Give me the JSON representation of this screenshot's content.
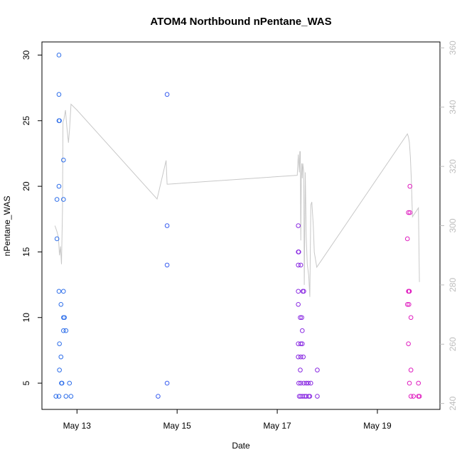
{
  "chart_data": {
    "type": "scatter",
    "title": "ATOM4 Northbound nPentane_WAS",
    "xlabel": "Date",
    "ylabel": "nPentane_WAS",
    "x_units": "days (May 13 = 13.0)",
    "xlim": [
      12.3,
      20.25
    ],
    "ylim": [
      3.0,
      31.0
    ],
    "x_ticks": [
      {
        "value": 13,
        "label": "May 13"
      },
      {
        "value": 15,
        "label": "May 15"
      },
      {
        "value": 17,
        "label": "May 17"
      },
      {
        "value": 19,
        "label": "May 19"
      }
    ],
    "y_ticks": [
      5,
      10,
      15,
      20,
      25,
      30
    ],
    "y2lim": [
      238.0,
      362.0
    ],
    "y2_ticks": [
      240,
      260,
      280,
      300,
      320,
      340,
      360
    ],
    "points": [
      {
        "x": 12.58,
        "y": 4,
        "color": "#2f6fea"
      },
      {
        "x": 12.6,
        "y": 16,
        "color": "#2f6fea"
      },
      {
        "x": 12.6,
        "y": 19,
        "color": "#2f6fea"
      },
      {
        "x": 12.64,
        "y": 30,
        "color": "#2f6fea"
      },
      {
        "x": 12.64,
        "y": 27,
        "color": "#2f6fea"
      },
      {
        "x": 12.64,
        "y": 25,
        "color": "#2f6fea"
      },
      {
        "x": 12.65,
        "y": 25,
        "color": "#2f6fea"
      },
      {
        "x": 12.64,
        "y": 20,
        "color": "#2f6fea"
      },
      {
        "x": 12.64,
        "y": 12,
        "color": "#2f6fea"
      },
      {
        "x": 12.65,
        "y": 8,
        "color": "#2f6fea"
      },
      {
        "x": 12.65,
        "y": 6,
        "color": "#2f6fea"
      },
      {
        "x": 12.64,
        "y": 4,
        "color": "#2f6fea"
      },
      {
        "x": 12.68,
        "y": 11,
        "color": "#2f6fea"
      },
      {
        "x": 12.68,
        "y": 7,
        "color": "#2f6fea"
      },
      {
        "x": 12.69,
        "y": 5,
        "color": "#2f6fea"
      },
      {
        "x": 12.7,
        "y": 5,
        "color": "#2f6fea"
      },
      {
        "x": 12.73,
        "y": 22,
        "color": "#2f6fea"
      },
      {
        "x": 12.73,
        "y": 19,
        "color": "#2f6fea"
      },
      {
        "x": 12.73,
        "y": 12,
        "color": "#2f6fea"
      },
      {
        "x": 12.73,
        "y": 10,
        "color": "#2f6fea"
      },
      {
        "x": 12.75,
        "y": 10,
        "color": "#2f6fea"
      },
      {
        "x": 12.73,
        "y": 9,
        "color": "#2f6fea"
      },
      {
        "x": 12.78,
        "y": 9,
        "color": "#2f6fea"
      },
      {
        "x": 12.78,
        "y": 4,
        "color": "#2f6fea"
      },
      {
        "x": 12.85,
        "y": 5,
        "color": "#2f6fea"
      },
      {
        "x": 12.88,
        "y": 4,
        "color": "#2f6fea"
      },
      {
        "x": 14.62,
        "y": 4,
        "color": "#3b5ff0"
      },
      {
        "x": 14.8,
        "y": 27,
        "color": "#3b5ff0"
      },
      {
        "x": 14.8,
        "y": 17,
        "color": "#3b5ff0"
      },
      {
        "x": 14.8,
        "y": 14,
        "color": "#3b5ff0"
      },
      {
        "x": 14.8,
        "y": 5,
        "color": "#3b5ff0"
      },
      {
        "x": 17.42,
        "y": 17,
        "color": "#8a2be2"
      },
      {
        "x": 17.42,
        "y": 15,
        "color": "#8a2be2"
      },
      {
        "x": 17.43,
        "y": 15,
        "color": "#8a2be2"
      },
      {
        "x": 17.42,
        "y": 14,
        "color": "#8a2be2"
      },
      {
        "x": 17.47,
        "y": 14,
        "color": "#8a2be2"
      },
      {
        "x": 17.42,
        "y": 12,
        "color": "#8a2be2"
      },
      {
        "x": 17.42,
        "y": 11,
        "color": "#8a2be2"
      },
      {
        "x": 17.42,
        "y": 8,
        "color": "#8a2be2"
      },
      {
        "x": 17.42,
        "y": 7,
        "color": "#8a2be2"
      },
      {
        "x": 17.43,
        "y": 5,
        "color": "#8a2be2"
      },
      {
        "x": 17.44,
        "y": 4,
        "color": "#8a2be2"
      },
      {
        "x": 17.46,
        "y": 10,
        "color": "#8a2be2"
      },
      {
        "x": 17.46,
        "y": 6,
        "color": "#8a2be2"
      },
      {
        "x": 17.47,
        "y": 8,
        "color": "#8a2be2"
      },
      {
        "x": 17.47,
        "y": 7,
        "color": "#8a2be2"
      },
      {
        "x": 17.47,
        "y": 5,
        "color": "#8a2be2"
      },
      {
        "x": 17.47,
        "y": 4,
        "color": "#8a2be2"
      },
      {
        "x": 17.49,
        "y": 10,
        "color": "#8a2be2"
      },
      {
        "x": 17.5,
        "y": 9,
        "color": "#8a2be2"
      },
      {
        "x": 17.5,
        "y": 8,
        "color": "#8a2be2"
      },
      {
        "x": 17.51,
        "y": 12,
        "color": "#8a2be2"
      },
      {
        "x": 17.51,
        "y": 4,
        "color": "#8a2be2"
      },
      {
        "x": 17.53,
        "y": 12,
        "color": "#8a2be2"
      },
      {
        "x": 17.52,
        "y": 7,
        "color": "#8a2be2"
      },
      {
        "x": 17.53,
        "y": 5,
        "color": "#8a2be2"
      },
      {
        "x": 17.55,
        "y": 4,
        "color": "#8a2be2"
      },
      {
        "x": 17.58,
        "y": 5,
        "color": "#8a2be2"
      },
      {
        "x": 17.58,
        "y": 4,
        "color": "#8a2be2"
      },
      {
        "x": 17.62,
        "y": 5,
        "color": "#8a2be2"
      },
      {
        "x": 17.63,
        "y": 4,
        "color": "#8a2be2"
      },
      {
        "x": 17.65,
        "y": 4,
        "color": "#8a2be2"
      },
      {
        "x": 17.67,
        "y": 5,
        "color": "#8a2be2"
      },
      {
        "x": 17.8,
        "y": 6,
        "color": "#8a2be2"
      },
      {
        "x": 17.8,
        "y": 4,
        "color": "#8a2be2"
      },
      {
        "x": 19.6,
        "y": 16,
        "color": "#e020c0"
      },
      {
        "x": 19.6,
        "y": 11,
        "color": "#e020c0"
      },
      {
        "x": 19.62,
        "y": 18,
        "color": "#e020c0"
      },
      {
        "x": 19.65,
        "y": 18,
        "color": "#e020c0"
      },
      {
        "x": 19.62,
        "y": 12,
        "color": "#e020c0"
      },
      {
        "x": 19.63,
        "y": 12,
        "color": "#e020c0"
      },
      {
        "x": 19.64,
        "y": 12,
        "color": "#e020c0"
      },
      {
        "x": 19.63,
        "y": 11,
        "color": "#e020c0"
      },
      {
        "x": 19.62,
        "y": 8,
        "color": "#e020c0"
      },
      {
        "x": 19.64,
        "y": 5,
        "color": "#e020c0"
      },
      {
        "x": 19.65,
        "y": 20,
        "color": "#e020c0"
      },
      {
        "x": 19.67,
        "y": 10,
        "color": "#e020c0"
      },
      {
        "x": 19.67,
        "y": 6,
        "color": "#e020c0"
      },
      {
        "x": 19.67,
        "y": 4,
        "color": "#e020c0"
      },
      {
        "x": 19.72,
        "y": 4,
        "color": "#e020c0"
      },
      {
        "x": 19.82,
        "y": 5,
        "color": "#e020c0"
      },
      {
        "x": 19.82,
        "y": 4,
        "color": "#e020c0"
      },
      {
        "x": 19.84,
        "y": 4,
        "color": "#e020c0"
      }
    ],
    "secondary_line": {
      "axis": "right",
      "color": "#c8c8c8",
      "points": [
        [
          12.56,
          300
        ],
        [
          12.6,
          298
        ],
        [
          12.63,
          296
        ],
        [
          12.65,
          290
        ],
        [
          12.67,
          293
        ],
        [
          12.69,
          287
        ],
        [
          12.71,
          305
        ],
        [
          12.72,
          335
        ],
        [
          12.74,
          336
        ],
        [
          12.77,
          339
        ],
        [
          12.8,
          333
        ],
        [
          12.83,
          328
        ],
        [
          12.85,
          332
        ],
        [
          12.87,
          338
        ],
        [
          12.88,
          341
        ],
        [
          13.0,
          339
        ],
        [
          14.6,
          309
        ],
        [
          14.78,
          322
        ],
        [
          14.8,
          314
        ],
        [
          14.82,
          314
        ],
        [
          17.4,
          317
        ],
        [
          17.42,
          324
        ],
        [
          17.44,
          318
        ],
        [
          17.45,
          325
        ],
        [
          17.46,
          325
        ],
        [
          17.47,
          295
        ],
        [
          17.48,
          316
        ],
        [
          17.49,
          321
        ],
        [
          17.5,
          316
        ],
        [
          17.51,
          321
        ],
        [
          17.53,
          318
        ],
        [
          17.54,
          280
        ],
        [
          17.56,
          318
        ],
        [
          17.58,
          296
        ],
        [
          17.6,
          287
        ],
        [
          17.63,
          283
        ],
        [
          17.65,
          276
        ],
        [
          17.67,
          307
        ],
        [
          17.69,
          308
        ],
        [
          17.72,
          300
        ],
        [
          17.74,
          291
        ],
        [
          17.79,
          286
        ],
        [
          19.6,
          331
        ],
        [
          19.62,
          330
        ],
        [
          19.64,
          328
        ],
        [
          19.66,
          323
        ],
        [
          19.68,
          315
        ],
        [
          19.7,
          303
        ],
        [
          19.78,
          305
        ],
        [
          19.82,
          306
        ],
        [
          19.84,
          281
        ]
      ]
    }
  }
}
